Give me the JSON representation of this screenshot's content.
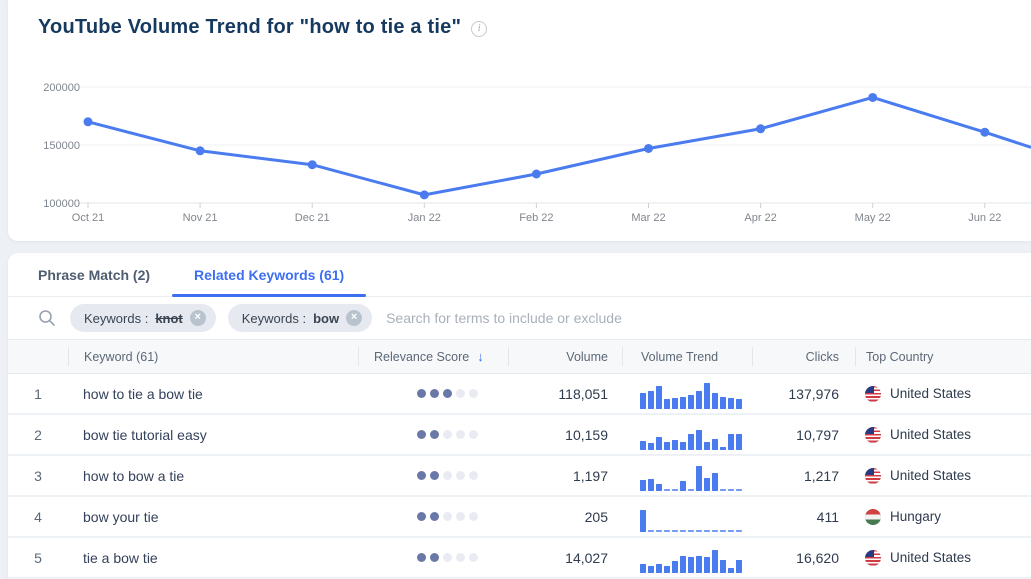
{
  "colors": {
    "accent": "#3d6ff2",
    "chart_line": "#4a7cf0",
    "trend_bar": "#4a7cf0",
    "dot_filled": "#6a78a7",
    "dot_empty": "#e8ecf2"
  },
  "icons": {
    "info": "i",
    "search": "magnifier",
    "sort_desc": "↓",
    "chip_remove": "×"
  },
  "header": {
    "title": "YouTube Volume Trend for \"how to tie a tie\""
  },
  "chart_data": {
    "type": "line",
    "title": "YouTube Volume Trend for \"how to tie a tie\"",
    "x": [
      "Oct 21",
      "Nov 21",
      "Dec 21",
      "Jan 22",
      "Feb 22",
      "Mar 22",
      "Apr 22",
      "May 22",
      "Jun 22"
    ],
    "values": [
      170000,
      145000,
      133000,
      107000,
      125000,
      147000,
      164000,
      191000,
      161000
    ],
    "edge_value_cutoff_right": 148000,
    "ylabel": "",
    "xlabel": "",
    "yticks": [
      100000,
      150000,
      200000
    ],
    "ylim": [
      95000,
      212000
    ],
    "grid": true,
    "legend": "none",
    "line_color": "#4a7cf0"
  },
  "tabs": [
    {
      "label": "Phrase Match (2)",
      "active": false
    },
    {
      "label": "Related Keywords (61)",
      "active": true
    }
  ],
  "search": {
    "placeholder": "Search for terms to include or exclude",
    "chips": [
      {
        "label": "Keywords :",
        "value": "knot",
        "excluded": true
      },
      {
        "label": "Keywords :",
        "value": "bow",
        "excluded": false
      }
    ]
  },
  "table": {
    "columns": {
      "num": "",
      "keyword": "Keyword (61)",
      "relevance": "Relevance Score",
      "volume": "Volume",
      "trend": "Volume Trend",
      "clicks": "Clicks",
      "country": "Top Country"
    },
    "sort": {
      "column": "Relevance Score",
      "direction": "desc"
    },
    "rows": [
      {
        "rank": "1",
        "keyword": "how to tie a bow tie",
        "relevance": 3,
        "relevance_max": 5,
        "volume": "118,051",
        "trend": [
          0.6,
          0.7,
          0.88,
          0.38,
          0.42,
          0.45,
          0.52,
          0.7,
          1.0,
          0.62,
          0.48,
          0.42,
          0.38
        ],
        "clicks": "137,976",
        "country": "United States",
        "flag": "us"
      },
      {
        "rank": "2",
        "keyword": "bow tie tutorial easy",
        "relevance": 2,
        "relevance_max": 5,
        "volume": "10,159",
        "trend": [
          0.35,
          0.28,
          0.5,
          0.32,
          0.4,
          0.3,
          0.62,
          0.78,
          0.3,
          0.42,
          0.08,
          0.6,
          0.62
        ],
        "clicks": "10,797",
        "country": "United States",
        "flag": "us"
      },
      {
        "rank": "3",
        "keyword": "how to bow a tie",
        "relevance": 2,
        "relevance_max": 5,
        "volume": "1,197",
        "trend": [
          0.42,
          0.48,
          0.25,
          0,
          0,
          0.38,
          0,
          0.95,
          0.5,
          0.7,
          0,
          0,
          0
        ],
        "clicks": "1,217",
        "country": "United States",
        "flag": "us"
      },
      {
        "rank": "4",
        "keyword": "bow your tie",
        "relevance": 2,
        "relevance_max": 5,
        "volume": "205",
        "trend": [
          0.85,
          0,
          0,
          0,
          0,
          0,
          0,
          0,
          0,
          0,
          0,
          0,
          0
        ],
        "clicks": "411",
        "country": "Hungary",
        "flag": "hu"
      },
      {
        "rank": "5",
        "keyword": "tie a bow tie",
        "relevance": 2,
        "relevance_max": 5,
        "volume": "14,027",
        "trend": [
          0.35,
          0.28,
          0.35,
          0.25,
          0.45,
          0.65,
          0.6,
          0.65,
          0.6,
          0.9,
          0.5,
          0.2,
          0.5
        ],
        "clicks": "16,620",
        "country": "United States",
        "flag": "us"
      }
    ]
  }
}
